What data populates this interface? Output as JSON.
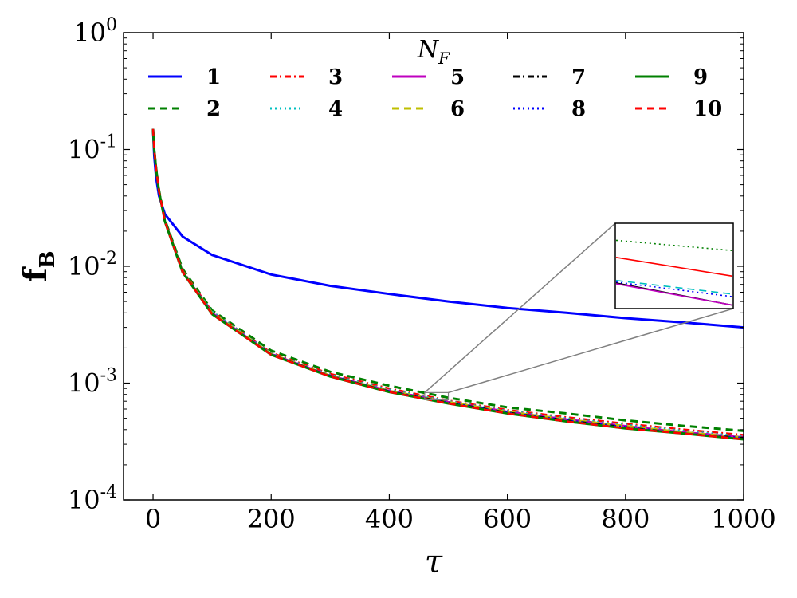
{
  "chart_data": {
    "type": "line",
    "xlabel": "τ",
    "ylabel": "f",
    "ylabel_subscript": "B",
    "yscale": "log",
    "xlim": [
      -50,
      1000
    ],
    "ylim": [
      0.0001,
      1
    ],
    "x_ticks": [
      {
        "value": 0,
        "label": "0"
      },
      {
        "value": 200,
        "label": "200"
      },
      {
        "value": 400,
        "label": "400"
      },
      {
        "value": 600,
        "label": "600"
      },
      {
        "value": 800,
        "label": "800"
      },
      {
        "value": 1000,
        "label": "1000"
      }
    ],
    "y_ticks": [
      {
        "value": 1,
        "base": "10",
        "exp": "0"
      },
      {
        "value": 0.1,
        "base": "10",
        "exp": "-1"
      },
      {
        "value": 0.01,
        "base": "10",
        "exp": "-2"
      },
      {
        "value": 0.001,
        "base": "10",
        "exp": "-3"
      },
      {
        "value": 0.0001,
        "base": "10",
        "exp": "-4"
      }
    ],
    "legend": {
      "title_base": "N",
      "title_sub": "F",
      "placement": "top",
      "columns": 5
    },
    "grid": false,
    "x": [
      0,
      2,
      5,
      10,
      20,
      50,
      100,
      200,
      300,
      400,
      500,
      600,
      700,
      800,
      900,
      1000
    ],
    "series": [
      {
        "name": "1",
        "color": "#0000ff",
        "style": "solid",
        "values": [
          0.15,
          0.088,
          0.058,
          0.04,
          0.028,
          0.018,
          0.0125,
          0.0085,
          0.0068,
          0.0058,
          0.005,
          0.0044,
          0.004,
          0.0036,
          0.0033,
          0.003
        ]
      },
      {
        "name": "2",
        "color": "#008000",
        "style": "dashed",
        "values": [
          0.15,
          0.1,
          0.07,
          0.045,
          0.025,
          0.0095,
          0.0042,
          0.0019,
          0.00125,
          0.00095,
          0.00075,
          0.00062,
          0.00055,
          0.00048,
          0.00043,
          0.00039
        ]
      },
      {
        "name": "3",
        "color": "#ff0000",
        "style": "dashdot",
        "values": [
          0.15,
          0.1,
          0.069,
          0.044,
          0.0245,
          0.0092,
          0.0041,
          0.00182,
          0.0012,
          0.0009,
          0.00071,
          0.00059,
          0.00051,
          0.00045,
          0.0004,
          0.00036
        ]
      },
      {
        "name": "4",
        "color": "#00bfbf",
        "style": "dotted",
        "values": [
          0.15,
          0.1,
          0.069,
          0.044,
          0.0244,
          0.0091,
          0.0041,
          0.0018,
          0.00118,
          0.00088,
          0.0007,
          0.00058,
          0.0005,
          0.00044,
          0.00039,
          0.00035
        ]
      },
      {
        "name": "5",
        "color": "#bf00bf",
        "style": "solid",
        "values": [
          0.15,
          0.1,
          0.069,
          0.044,
          0.0243,
          0.009,
          0.004,
          0.00178,
          0.00116,
          0.00086,
          0.00069,
          0.00057,
          0.00049,
          0.00043,
          0.00038,
          0.000345
        ]
      },
      {
        "name": "6",
        "color": "#bfbf00",
        "style": "dashed",
        "values": [
          0.15,
          0.1,
          0.069,
          0.044,
          0.0243,
          0.009,
          0.004,
          0.00178,
          0.00116,
          0.00086,
          0.00069,
          0.00057,
          0.00049,
          0.00043,
          0.00038,
          0.000343
        ]
      },
      {
        "name": "7",
        "color": "#000000",
        "style": "dashdot",
        "values": [
          0.15,
          0.1,
          0.069,
          0.044,
          0.0242,
          0.0089,
          0.0039,
          0.00176,
          0.00115,
          0.00085,
          0.00068,
          0.00056,
          0.00048,
          0.00042,
          0.00037,
          0.00034
        ]
      },
      {
        "name": "8",
        "color": "#0000ff",
        "style": "dotted",
        "values": [
          0.15,
          0.1,
          0.069,
          0.044,
          0.0242,
          0.0089,
          0.0039,
          0.00176,
          0.00115,
          0.00085,
          0.00068,
          0.00056,
          0.00048,
          0.00042,
          0.00037,
          0.00034
        ]
      },
      {
        "name": "9",
        "color": "#008000",
        "style": "solid",
        "values": [
          0.15,
          0.1,
          0.069,
          0.044,
          0.0242,
          0.0089,
          0.0039,
          0.00175,
          0.00114,
          0.00084,
          0.00067,
          0.00055,
          0.00047,
          0.00041,
          0.00037,
          0.00033
        ]
      },
      {
        "name": "10",
        "color": "#ff0000",
        "style": "dashed",
        "values": [
          0.15,
          0.1,
          0.069,
          0.044,
          0.0242,
          0.0089,
          0.0039,
          0.00175,
          0.00114,
          0.00084,
          0.00067,
          0.00055,
          0.00047,
          0.00041,
          0.00037,
          0.00033
        ]
      }
    ],
    "inset": {
      "source_xlim": [
        460,
        500
      ],
      "source_ylim": [
        0.00072,
        0.00083
      ],
      "lines": [
        {
          "color": "#008000",
          "style": "dotted",
          "y_start": 0.8,
          "y_end": 0.68
        },
        {
          "color": "#ff0000",
          "style": "solid",
          "y_start": 0.6,
          "y_end": 0.38
        },
        {
          "color": "#00bfbf",
          "style": "dashed",
          "y_start": 0.33,
          "y_end": 0.17
        },
        {
          "color": "#0000ff",
          "style": "dotted",
          "y_start": 0.31,
          "y_end": 0.14
        },
        {
          "color": "#000000",
          "style": "solid",
          "y_start": 0.3,
          "y_end": 0.04
        },
        {
          "color": "#bf00bf",
          "style": "solid",
          "y_start": 0.29,
          "y_end": 0.04
        }
      ]
    }
  }
}
